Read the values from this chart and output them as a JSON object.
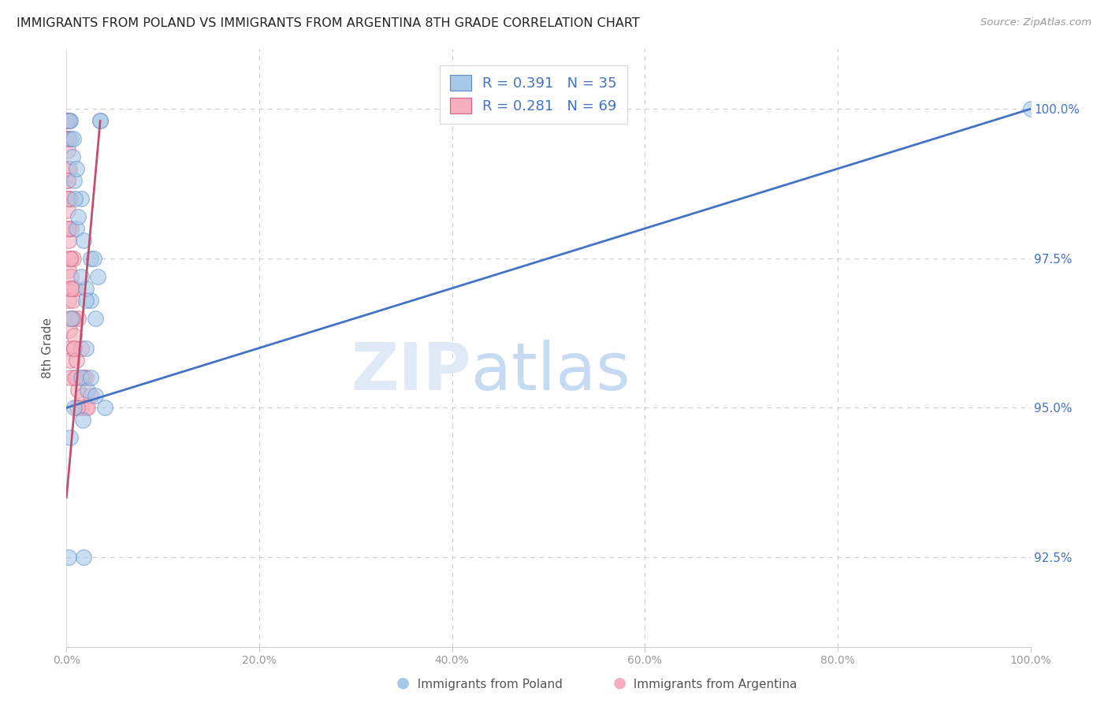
{
  "title": "IMMIGRANTS FROM POLAND VS IMMIGRANTS FROM ARGENTINA 8TH GRADE CORRELATION CHART",
  "source": "Source: ZipAtlas.com",
  "ylabel": "8th Grade",
  "ytick_values": [
    92.5,
    95.0,
    97.5,
    100.0
  ],
  "R_poland": 0.391,
  "N_poland": 35,
  "R_argentina": 0.281,
  "N_argentina": 69,
  "poland_color": "#a8c8e8",
  "argentina_color": "#f4b0c0",
  "poland_edge_color": "#5b8cc8",
  "argentina_edge_color": "#d06080",
  "poland_line_color": "#4472c4",
  "argentina_line_color": "#c05070",
  "background_color": "#ffffff",
  "poland_x": [
    0.5,
    1.5,
    3.5,
    1.0,
    2.5,
    2.5,
    3.2,
    2.0,
    1.8,
    3.0,
    0.8,
    1.2,
    2.8,
    0.6,
    1.0,
    0.4,
    0.9,
    2.0,
    3.5,
    0.3,
    0.7,
    0.5,
    1.5,
    0.8,
    1.7,
    2.2,
    1.5,
    2.0,
    3.0,
    0.2,
    1.8,
    2.5,
    4.0,
    0.4,
    100.0
  ],
  "poland_y": [
    99.5,
    98.5,
    99.8,
    98.0,
    97.5,
    96.8,
    97.2,
    97.0,
    97.8,
    96.5,
    98.8,
    98.2,
    97.5,
    99.2,
    99.0,
    99.8,
    98.5,
    96.0,
    99.8,
    99.8,
    99.5,
    96.5,
    95.5,
    95.0,
    94.8,
    95.3,
    97.2,
    96.8,
    95.2,
    92.5,
    92.5,
    95.5,
    95.0,
    94.5,
    100.0
  ],
  "argentina_x": [
    0.08,
    0.08,
    0.08,
    0.08,
    0.08,
    0.08,
    0.08,
    0.08,
    0.08,
    0.08,
    0.08,
    0.08,
    0.08,
    0.08,
    0.08,
    0.08,
    0.1,
    0.1,
    0.1,
    0.1,
    0.1,
    0.15,
    0.15,
    0.15,
    0.2,
    0.2,
    0.2,
    0.25,
    0.25,
    0.3,
    0.3,
    0.35,
    0.4,
    0.4,
    0.5,
    0.5,
    0.6,
    0.6,
    0.7,
    0.8,
    0.8,
    1.0,
    1.0,
    1.2,
    1.5,
    1.7,
    2.0,
    2.0,
    2.5,
    0.15,
    0.2,
    0.3,
    0.4,
    0.5,
    0.7,
    0.9,
    1.2,
    1.5,
    1.8,
    2.2,
    0.12,
    0.18,
    0.25,
    0.35,
    0.45,
    0.6,
    0.75,
    0.9,
    1.1
  ],
  "argentina_y": [
    99.8,
    99.8,
    99.8,
    99.8,
    99.8,
    99.8,
    99.8,
    99.8,
    99.8,
    99.8,
    99.8,
    99.8,
    99.8,
    99.8,
    99.8,
    99.8,
    99.5,
    99.5,
    99.3,
    99.0,
    98.8,
    98.5,
    98.3,
    98.0,
    97.8,
    97.5,
    97.3,
    97.0,
    96.8,
    96.5,
    96.3,
    96.0,
    95.8,
    95.5,
    97.5,
    97.2,
    97.0,
    96.8,
    96.5,
    96.2,
    96.0,
    95.8,
    95.5,
    95.3,
    95.0,
    95.2,
    95.0,
    95.5,
    95.2,
    99.8,
    99.5,
    99.0,
    98.5,
    98.0,
    97.5,
    97.0,
    96.5,
    96.0,
    95.5,
    95.0,
    98.8,
    98.5,
    98.0,
    97.5,
    97.0,
    96.5,
    96.0,
    95.5,
    95.0
  ],
  "poland_line_x": [
    0.0,
    100.0
  ],
  "poland_line_y": [
    95.0,
    100.0
  ],
  "argentina_line_x": [
    0.0,
    3.5
  ],
  "argentina_line_y": [
    93.5,
    99.8
  ],
  "xlim": [
    0,
    100
  ],
  "ylim": [
    91.0,
    101.0
  ],
  "xtick_positions": [
    0,
    20,
    40,
    60,
    80,
    100
  ],
  "xtick_labels": [
    "0.0%",
    "20.0%",
    "40.0%",
    "60.0%",
    "80.0%",
    "100.0%"
  ]
}
